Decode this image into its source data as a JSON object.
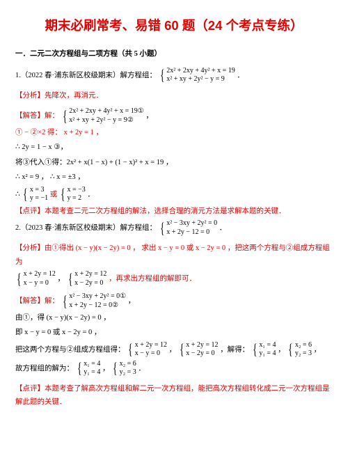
{
  "title": "期末必刷常考、易错 60 题（24 个考点专练）",
  "section": "一．二元二次方程组与二项方程（共 5 小题）",
  "q1": {
    "stem_a": "1.（2022 春·浦东新区校级期末）解方程组：",
    "eq1": "2x² + 2xy + 4y² + x = 19",
    "eq2": "x² + xy + 2y² − y = 9",
    "suffix": "．",
    "analysis": "【分析】先降次，再消元．",
    "solve_label": "【解答】解：",
    "s_eq1": "2x² + 2xy + 4y² + x = 19①",
    "s_eq2": "x² + xy + 2y² − y = 9②",
    "step1": "① − ②×2 得：  x + 2y = 1 ，",
    "step2": "∴ 2y = 1 − x ③，",
    "step3": "将③代入①得：2x² + x(1 − x) + (1 − x)² + x = 19 ，",
    "step4": "∴ x² = 9 ，  ∴ x = ±3 ，",
    "res_a1": "x = 3",
    "res_a2": "y = −1",
    "res_or": "或",
    "res_b1": "x = −3",
    "res_b2": "y = 2",
    "comment": "【点评】本题考查二元二次方程组的解法，选择合理的消元方法是求解本题的关键．"
  },
  "q2": {
    "stem_a": "2.（2023 春·浦东新区校级期末）解方程组：",
    "eq1": "x² − 3xy + 2y² = 0",
    "eq2": "x + 2y − 12 = 0",
    "suffix": "．",
    "analysis_a": "【分析】由①得出 (x − y)(x − 2y) = 0 ， 求出 x − y = 0 或 x − 2y = 0 ，把这两个方程与②组成方程组为",
    "g1a": "x + 2y = 12",
    "g1b": "x − y = 0",
    "g2a": "x + 2y = 12",
    "g2b": "x − 2y = 0",
    "analysis_b": "，再求出方程组的解即可．",
    "solve_label": "【解答】解：",
    "s_eq1": "x² − 3xy + 2y² = 0①",
    "s_eq2": "x + 2y − 12 = 0②",
    "step1": "由①，得 (x − y)(x − 2y) = 0 ，",
    "step2": "即 x − y = 0 或 x − 2y = 0 ，",
    "step3a": "把这两个方程与②组成方程组得：",
    "step3b": "，解得：",
    "r1a": "x₁ = 4",
    "r1b": "y₁ = 4",
    "r2a": "x₂ = 6",
    "r2b": "y₂ = 3",
    "step4": "故方程组的解为：",
    "comment": "【点评】本题考查了解高次方程组和解二元一次方程组，能把高次方程组转化成二元一次方程组是解此题的关键．"
  }
}
